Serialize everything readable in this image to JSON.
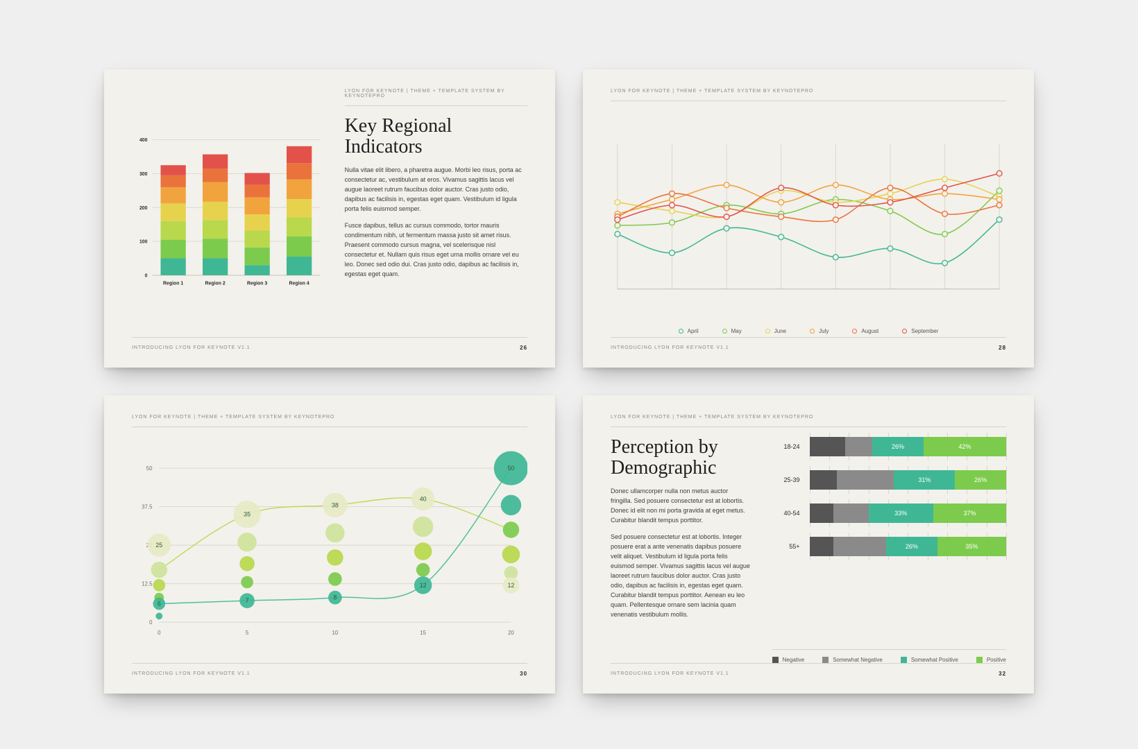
{
  "page_bg": "#efefef",
  "slide_bg": "#f3f1ec",
  "rule_color": "#d6d3c9",
  "eyebrow": "LYON FOR KEYNOTE | THEME + TEMPLATE SYSTEM BY KEYNOTEPRO",
  "footer": "INTRODUCING LYON FOR KEYNOTE V1.1",
  "slide1": {
    "page": "26",
    "title": "Key Regional Indicators",
    "para1": "Nulla vitae elit libero, a pharetra augue. Morbi leo risus, porta ac consectetur ac, vestibulum at eros. Vivamus sagittis lacus vel augue laoreet rutrum faucibus dolor auctor. Cras justo odio, dapibus ac facilisis in, egestas eget quam. Vestibulum id ligula porta felis euismod semper.",
    "para2": "Fusce dapibus, tellus ac cursus commodo, tortor mauris condimentum nibh, ut fermentum massa justo sit amet risus. Praesent commodo cursus magna, vel scelerisque nisl consectetur et. Nullam quis risus eget urna mollis ornare vel eu leo. Donec sed odio dui. Cras justo odio, dapibus ac facilisis in, egestas eget quam.",
    "chart": {
      "type": "stacked-bar",
      "y_max": 400,
      "y_ticks": [
        0,
        100,
        200,
        300,
        400
      ],
      "segment_colors": [
        "#3fb795",
        "#7dcb4d",
        "#b9d84c",
        "#e7d24e",
        "#f1a43e",
        "#e9733b",
        "#e2524b"
      ],
      "categories": [
        "Region 1",
        "Region 2",
        "Region 3",
        "Region 4"
      ],
      "stacks": [
        [
          50,
          55,
          55,
          52,
          48,
          35,
          30
        ],
        [
          50,
          58,
          55,
          54,
          58,
          40,
          42
        ],
        [
          30,
          52,
          50,
          48,
          50,
          38,
          34
        ],
        [
          55,
          60,
          56,
          54,
          58,
          48,
          50
        ]
      ],
      "axis_label_fontsize": 8,
      "bar_width": 0.6
    }
  },
  "slide2": {
    "page": "28",
    "chart": {
      "type": "line",
      "series_colors": {
        "April": "#3fb795",
        "May": "#7dcb4d",
        "June": "#e7d24e",
        "July": "#f1a43e",
        "August": "#e9733b",
        "September": "#e2524b"
      },
      "x_points": [
        0,
        1,
        2,
        3,
        4,
        5,
        6,
        7
      ],
      "y_range": [
        0,
        100
      ],
      "series": {
        "April": [
          38,
          25,
          42,
          36,
          22,
          28,
          18,
          48
        ],
        "May": [
          44,
          46,
          58,
          52,
          62,
          54,
          38,
          68
        ],
        "June": [
          60,
          54,
          50,
          68,
          60,
          66,
          76,
          64
        ],
        "July": [
          52,
          62,
          72,
          60,
          72,
          62,
          66,
          62
        ],
        "August": [
          50,
          66,
          56,
          50,
          48,
          70,
          52,
          58
        ],
        "September": [
          48,
          58,
          50,
          70,
          58,
          60,
          70,
          80
        ]
      },
      "line_width": 1.6,
      "marker": "hollow-circle",
      "marker_size": 4,
      "grid_color": "#d9d6cc"
    },
    "legend": [
      "April",
      "May",
      "June",
      "July",
      "August",
      "September"
    ]
  },
  "slide3": {
    "page": "30",
    "chart": {
      "type": "bubble+line",
      "x_ticks": [
        0,
        5,
        10,
        15,
        20
      ],
      "y_ticks": [
        0,
        12.5,
        25,
        37.5,
        50
      ],
      "grid_color": "#d9d6cc",
      "line_colors": [
        "#b9d84c",
        "#3fb795"
      ],
      "lines": [
        [
          [
            0,
            17
          ],
          [
            5,
            35
          ],
          [
            10,
            38
          ],
          [
            15,
            40
          ],
          [
            20,
            30
          ]
        ],
        [
          [
            0,
            6
          ],
          [
            5,
            7
          ],
          [
            10,
            8
          ],
          [
            15,
            12
          ],
          [
            20,
            50
          ]
        ]
      ],
      "bubble_palette": [
        "#3fb795",
        "#7dcb4d",
        "#b9d84c",
        "#cfe39a",
        "#e7eac4"
      ],
      "columns": [
        {
          "x": 0,
          "bubbles": [
            {
              "y": 25,
              "r": 17,
              "c": 4,
              "lbl": "25"
            },
            {
              "y": 17,
              "r": 12,
              "c": 3
            },
            {
              "y": 12,
              "r": 9,
              "c": 2
            },
            {
              "y": 8,
              "r": 7,
              "c": 1
            },
            {
              "y": 6,
              "r": 9,
              "c": 0,
              "lbl": "6"
            },
            {
              "y": 2,
              "r": 5,
              "c": 0
            }
          ]
        },
        {
          "x": 5,
          "bubbles": [
            {
              "y": 35,
              "r": 20,
              "c": 4,
              "lbl": "35"
            },
            {
              "y": 26,
              "r": 14,
              "c": 3
            },
            {
              "y": 19,
              "r": 11,
              "c": 2
            },
            {
              "y": 13,
              "r": 9,
              "c": 1
            },
            {
              "y": 7,
              "r": 11,
              "c": 0,
              "lbl": "7"
            }
          ]
        },
        {
          "x": 10,
          "bubbles": [
            {
              "y": 38,
              "r": 18,
              "c": 4,
              "lbl": "38"
            },
            {
              "y": 29,
              "r": 14,
              "c": 3
            },
            {
              "y": 21,
              "r": 12,
              "c": 2
            },
            {
              "y": 14,
              "r": 10,
              "c": 1
            },
            {
              "y": 8,
              "r": 10,
              "c": 0,
              "lbl": "8"
            }
          ]
        },
        {
          "x": 15,
          "bubbles": [
            {
              "y": 40,
              "r": 17,
              "c": 4,
              "lbl": "40"
            },
            {
              "y": 31,
              "r": 15,
              "c": 3
            },
            {
              "y": 23,
              "r": 13,
              "c": 2
            },
            {
              "y": 17,
              "r": 10,
              "c": 1
            },
            {
              "y": 12,
              "r": 13,
              "c": 0,
              "lbl": "12"
            }
          ]
        },
        {
          "x": 20,
          "bubbles": [
            {
              "y": 50,
              "r": 25,
              "c": 0,
              "lbl": "50"
            },
            {
              "y": 38,
              "r": 15,
              "c": 0
            },
            {
              "y": 30,
              "r": 12,
              "c": 1
            },
            {
              "y": 22,
              "r": 13,
              "c": 2
            },
            {
              "y": 16,
              "r": 10,
              "c": 3
            },
            {
              "y": 12,
              "r": 12,
              "c": 4,
              "lbl": "12"
            }
          ]
        }
      ],
      "label_fontsize": 9,
      "label_color": "#2b5c3a"
    }
  },
  "slide4": {
    "page": "32",
    "title": "Perception by Demographic",
    "para1": "Donec ullamcorper nulla non metus auctor fringilla. Sed posuere consectetur est at lobortis. Donec id elit non mi porta gravida at eget metus. Curabitur blandit tempus porttitor.",
    "para2": "Sed posuere consectetur est at lobortis. Integer posuere erat a ante venenatis dapibus posuere velit aliquet. Vestibulum id ligula porta felis euismod semper. Vivamus sagittis lacus vel augue laoreet rutrum faucibus dolor auctor. Cras justo odio, dapibus ac facilisis in, egestas eget quam. Curabitur blandit tempus porttitor. Aenean eu leo quam. Pellentesque ornare sem lacinia quam venenatis vestibulum mollis.",
    "chart": {
      "type": "100%-stacked-hbar",
      "segment_colors": [
        "#555555",
        "#8a8a8a",
        "#3fb795",
        "#7dcb4d"
      ],
      "legend": [
        "Negative",
        "Somewhat Negative",
        "Somewhat Positive",
        "Positive"
      ],
      "label_color": "#ffffff",
      "label_fontsize": 9,
      "rows": [
        {
          "label": "18-24",
          "values": [
            18,
            14,
            26,
            42
          ],
          "show": [
            false,
            false,
            true,
            true
          ]
        },
        {
          "label": "25-39",
          "values": [
            14,
            29,
            31,
            26
          ],
          "show": [
            false,
            false,
            true,
            true
          ]
        },
        {
          "label": "40-54",
          "values": [
            12,
            18,
            33,
            37
          ],
          "show": [
            false,
            false,
            true,
            true
          ]
        },
        {
          "label": "55+",
          "values": [
            12,
            27,
            26,
            35
          ],
          "show": [
            false,
            false,
            true,
            true
          ]
        }
      ],
      "grid_color": "#d9d6cc"
    }
  }
}
